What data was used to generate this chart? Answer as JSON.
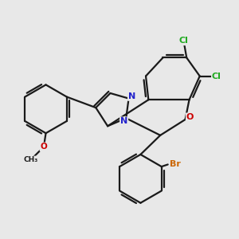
{
  "bg_color": "#e8e8e8",
  "bond_color": "#1a1a1a",
  "bond_width": 1.6,
  "atom_colors": {
    "Cl": "#22aa22",
    "Br": "#cc6600",
    "O": "#cc0000",
    "N": "#2222cc"
  }
}
